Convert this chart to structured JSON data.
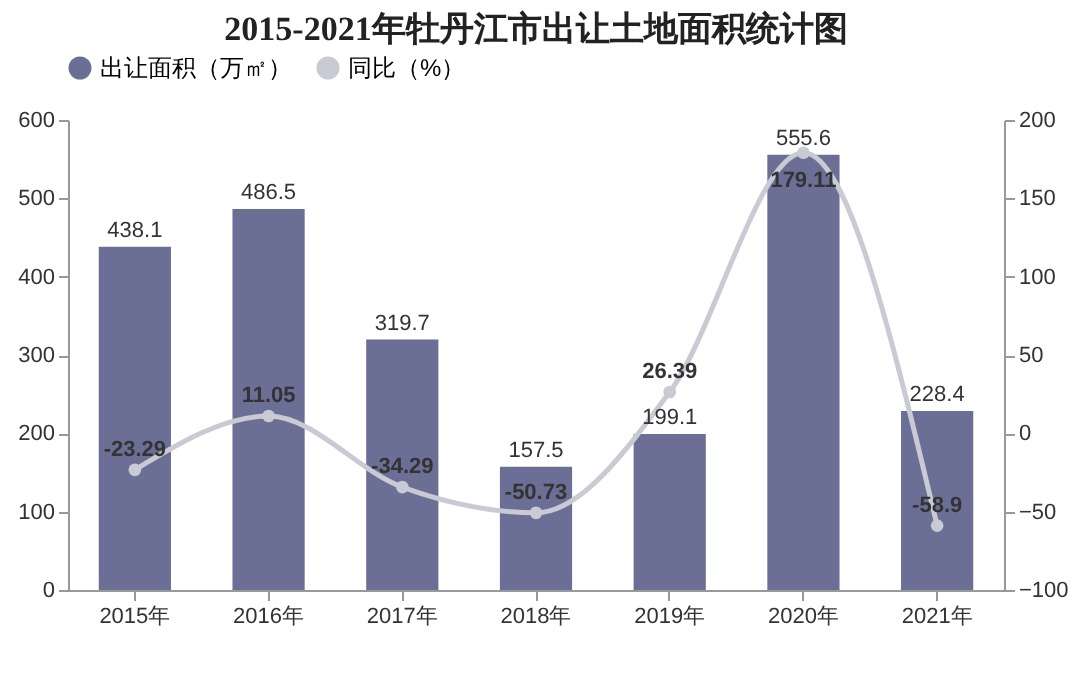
{
  "chart_data": {
    "type": "bar",
    "title": "2015-2021年牡丹江市出让土地面积统计图",
    "categories": [
      "2015年",
      "2016年",
      "2017年",
      "2018年",
      "2019年",
      "2020年",
      "2021年"
    ],
    "series": [
      {
        "name": "出让面积（万㎡）",
        "color": "#6b6f96",
        "values": [
          438.1,
          486.5,
          319.7,
          157.5,
          199.1,
          555.6,
          228.4
        ]
      },
      {
        "name": "同比（%）",
        "type": "line",
        "axis": "y2",
        "color": "#c9cad3",
        "values": [
          -23.29,
          11.05,
          -34.29,
          -50.73,
          26.39,
          179.11,
          -58.9
        ]
      }
    ],
    "ylim": [
      0,
      600
    ],
    "yticks": [
      0,
      100,
      200,
      300,
      400,
      500,
      600
    ],
    "y2lim": [
      -100,
      200
    ],
    "y2ticks": [
      -100,
      -50,
      0,
      50,
      100,
      150,
      200
    ],
    "data_labels": true,
    "legend": "top",
    "grid": false,
    "marker": "circle",
    "line_style": "solid"
  }
}
